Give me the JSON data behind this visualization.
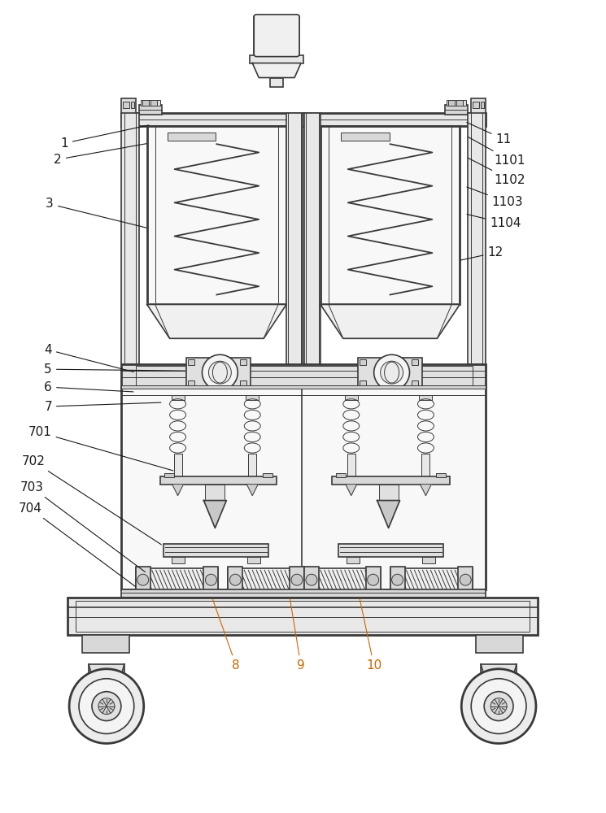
{
  "bg_color": "#ffffff",
  "lc": "#3a3a3a",
  "label_color": "#1a1a1a",
  "accent_color": "#cc6600",
  "figsize": [
    7.45,
    10.0
  ],
  "dpi": 100,
  "lw_main": 1.2,
  "lw_thick": 2.0,
  "lw_thin": 0.7,
  "fs": 11
}
